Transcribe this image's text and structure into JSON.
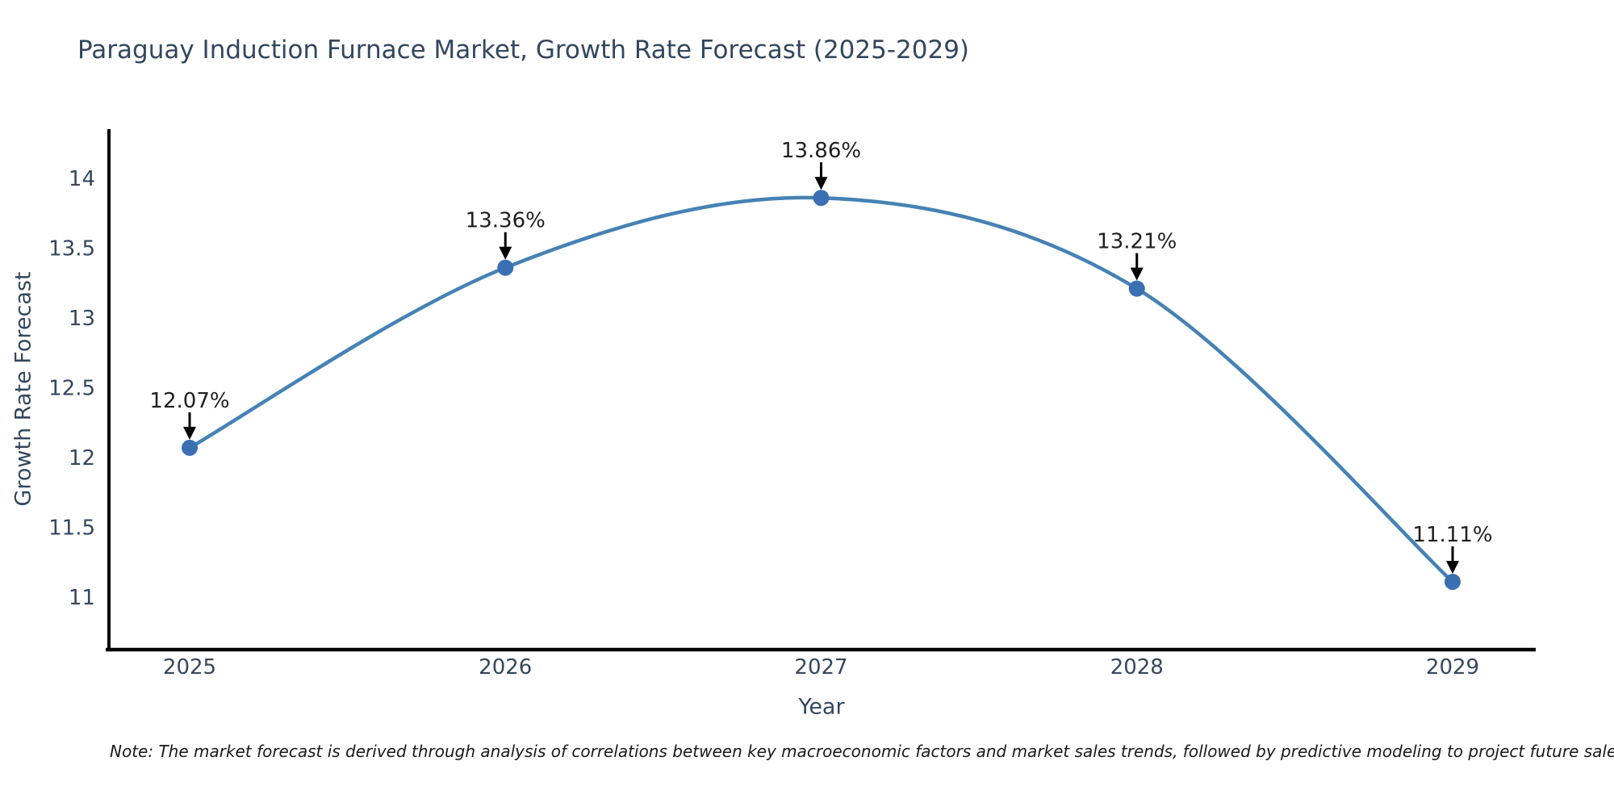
{
  "page": {
    "title": "Paraguay Induction Furnace Market, Growth Rate Forecast (2025-2029)",
    "note": "Note: The market forecast is derived through analysis of correlations between key macroeconomic factors and market sales trends, followed by predictive modeling to project future sales"
  },
  "chart_data": {
    "type": "line",
    "title": "Paraguay Induction Furnace Market, Growth Rate Forecast (2025-2029)",
    "xlabel": "Year",
    "ylabel": "Growth Rate Forecast",
    "categories": [
      "2025",
      "2026",
      "2027",
      "2028",
      "2029"
    ],
    "series": [
      {
        "name": "Growth Rate Forecast",
        "values": [
          12.07,
          13.36,
          13.86,
          13.21,
          11.11
        ]
      }
    ],
    "point_labels": [
      "12.07%",
      "13.36%",
      "13.86%",
      "13.21%",
      "11.11%"
    ],
    "yticks": [
      "14",
      "13.5",
      "13",
      "12.5",
      "12",
      "11.5",
      "11"
    ],
    "ylim": [
      10.6,
      14.35
    ],
    "grid": false,
    "legend": "none",
    "smooth": true,
    "line_color": "#4682b4",
    "marker_color": "#3a70b2",
    "arrow_color": "#000000",
    "annotation_color": "#1f1f1f",
    "tick_color": "#36465d",
    "axis_color": "#000000"
  }
}
